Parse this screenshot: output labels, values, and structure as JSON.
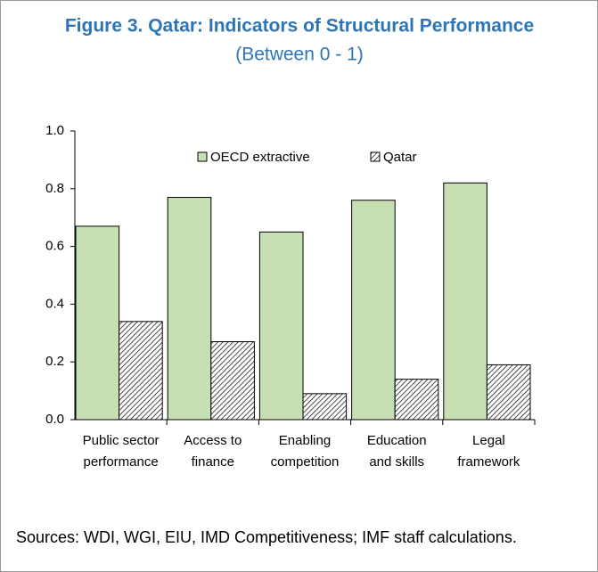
{
  "chart_data": {
    "type": "bar",
    "title": "Figure 3. Qatar: Indicators of Structural Performance",
    "subtitle": "(Between 0 - 1)",
    "categories": [
      [
        "Public sector",
        "performance"
      ],
      [
        "Access to",
        "finance"
      ],
      [
        "Enabling",
        "competition"
      ],
      [
        "Education",
        "and skills"
      ],
      [
        "Legal",
        "framework"
      ]
    ],
    "series": [
      {
        "name": "OECD extractive",
        "color": "#c6e0b4",
        "values": [
          0.67,
          0.77,
          0.65,
          0.76,
          0.82
        ]
      },
      {
        "name": "Qatar",
        "color": "hatch",
        "values": [
          0.34,
          0.27,
          0.09,
          0.14,
          0.19
        ]
      }
    ],
    "ylim": [
      0,
      1
    ],
    "yticks": [
      {
        "value": 0,
        "label": "0.0"
      },
      0.2,
      0.4,
      0.6,
      0.8,
      {
        "value": 1,
        "label": "1.0"
      }
    ],
    "legend": "top",
    "source": "Sources: WDI, WGI, EIU, IMD Competitiveness; IMF staff calculations."
  }
}
